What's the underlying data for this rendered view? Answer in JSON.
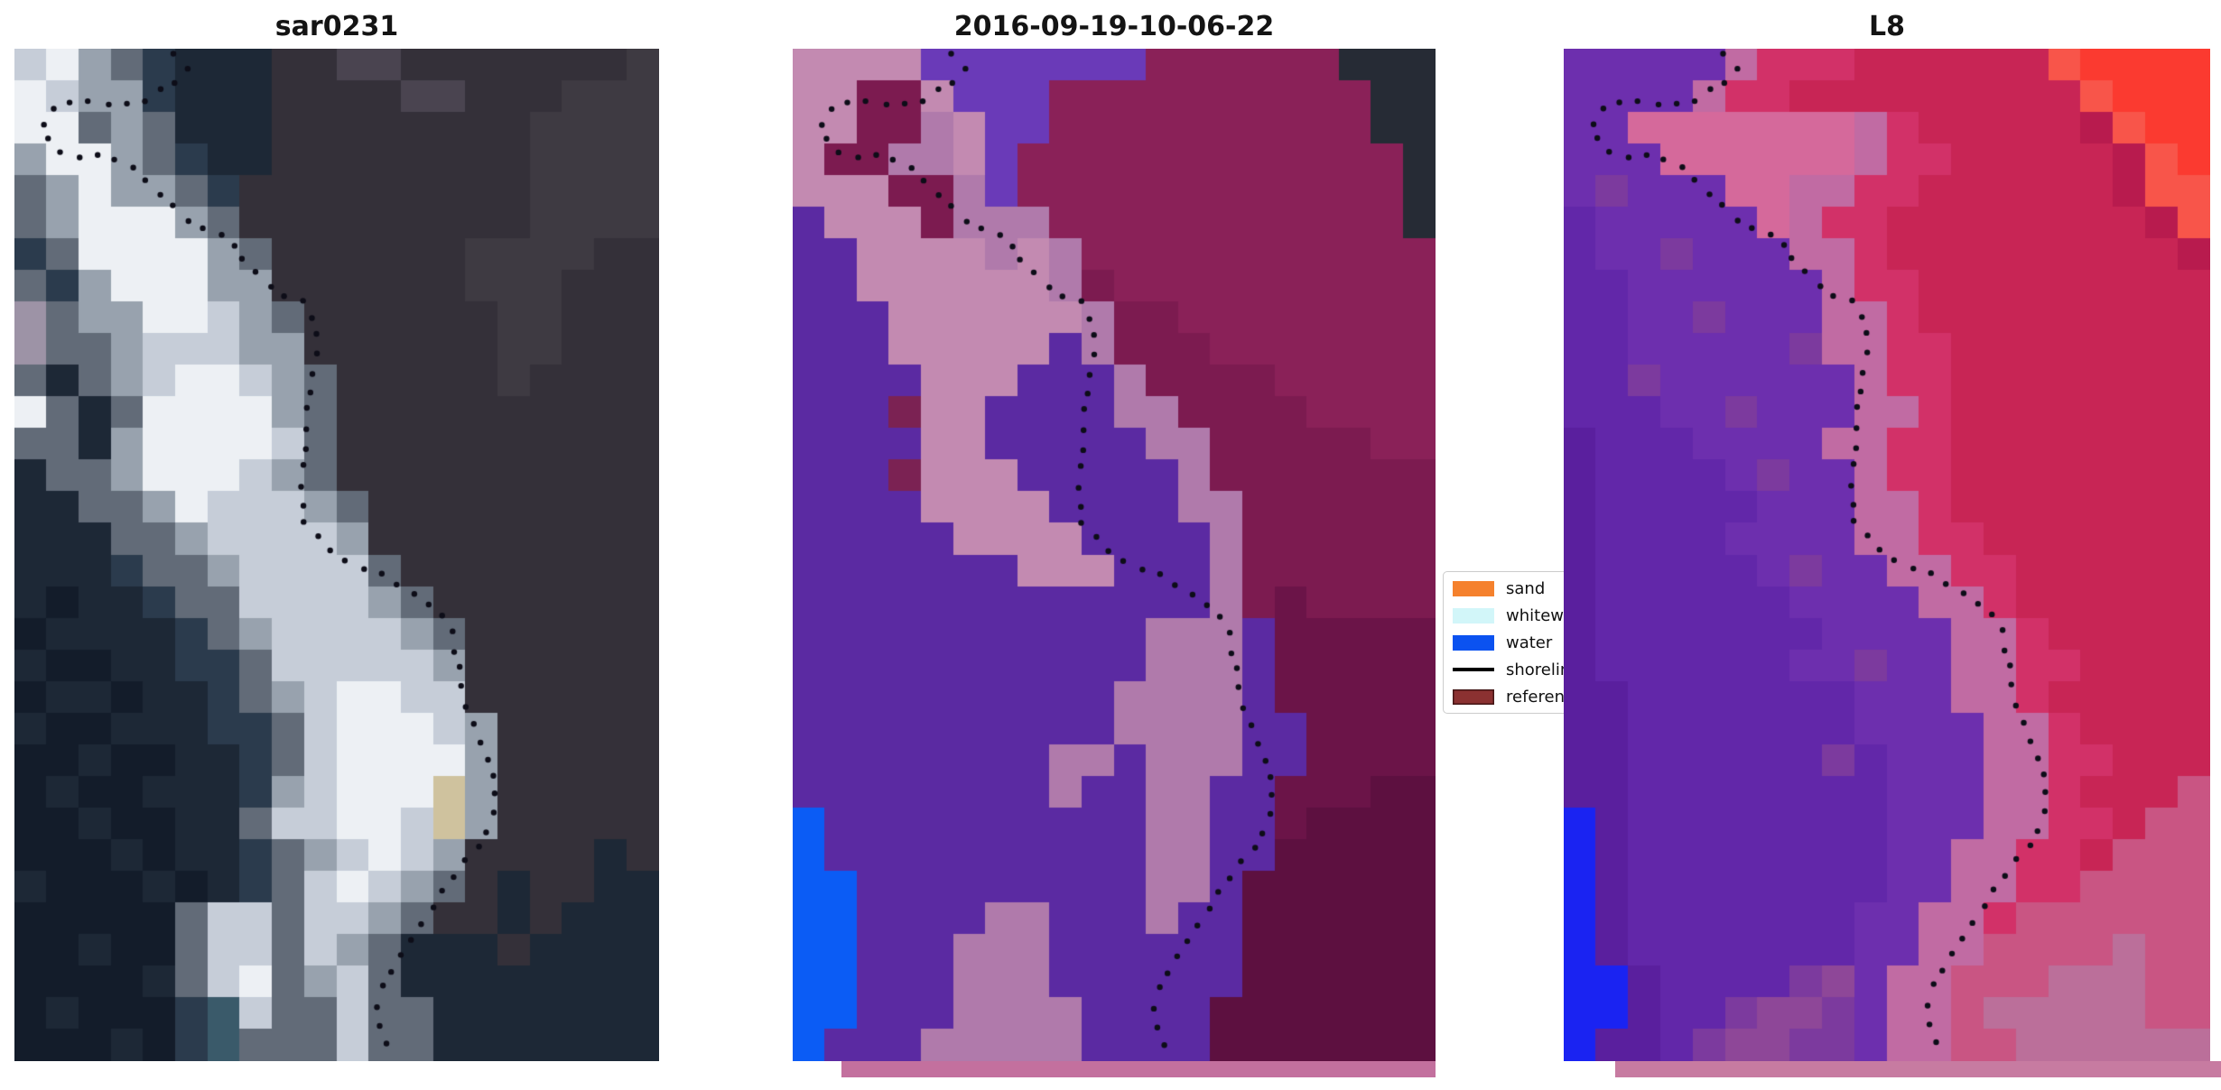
{
  "chart_data": {
    "type": "heatmap",
    "description": "Three-panel coastal satellite figure: SAR image, classified map, Landsat-8 false color; shared dotted shoreline overlay",
    "panels": [
      {
        "title": "sar0231",
        "palette": {
          "W": "#edf0f4",
          "w": "#c6cdd8",
          "G": "#98a2ae",
          "g": "#626b78",
          "t": "#2b3b4d",
          "T": "#3a5a6a",
          "n": "#1d2836",
          "N": "#131c2a",
          "l": "#343039",
          "L": "#3e3a42",
          "u": "#4a4450",
          "Y": "#9d93a6",
          "s": "#cfc29e"
        },
        "grid": [
          "wWGgtnnnlluulllllllL",
          "WwGGtnnnlllluulllLLL",
          "WWgGgnnnllllllllLLLL",
          "GWWGgtnnllllllllLLLL",
          "gGWGGgtlllllllllLLLL",
          "gGWWWGglllllllllLLLL",
          "tgWWWWGgllllllLLLLll",
          "gtGWWWGGllllllLLLlll",
          "YgGGWWwGgllllllLLlll",
          "YggGwwwGGllllllLLlll",
          "gngGwWWwGglllllLllll",
          "WgngWWWWGgllllllllll",
          "ggnGWWWWwgllllllllll",
          "nggGWWWwGgllllllllll",
          "nnggGWwwwGglllllllll",
          "nnnggGwwwwGlllllllll",
          "nnntggGwwwwgllllllll",
          "nNnntggwwwwGglllllll",
          "NnnnntgGwwwwGgllllll",
          "nNNnnttgwwwwwGllllll",
          "NnnNnntgGwWWwwllllll",
          "nNNnnnttgwWWWwGlllll",
          "NNnNNnntgwWWWWGlllll",
          "NnNNnnntGwWWWsGlllll",
          "NNnNNnngwwWWwsGlllll",
          "NNNnNnntgGwWwGllllnl",
          "nNNNnNntgwWwGglnllnn",
          "NNNNNgwwgwwGgllnlnnn",
          "NNnNNgwwgwGgnnnlnnnn",
          "NNNNngwWgGwgnnnnnnnn",
          "NnNNNtTwggwggnnnnnnn",
          "NNNnNtTgggwggnnnnnnn"
        ]
      },
      {
        "title": "2016-09-19-10-06-22",
        "palette": {
          "P": "#5b2aa2",
          "p": "#6a3ab8",
          "M": "#c38ab1",
          "m": "#b07aab",
          "R": "#8a2158",
          "r": "#7c1b50",
          "d": "#6b1448",
          "e": "#5d1040",
          "K": "#262b35",
          "B": "#0b5cf5",
          "D": "#7b2253"
        },
        "grid": [
          "MMMMpppppppRRRRRRKKK",
          "MMrrMpppRRRRRRRRRRKK",
          "MMrrmMppRRRRRRRRRRKK",
          "MrrmmMpRRRRRRRRRRRRK",
          "MMMrrmpRRRRRRRRRRRRK",
          "PMMMrmmmRRRRRRRRRRRK",
          "PPMMMMmMmRRRRRRRRRRR",
          "PPMMMMMMmrRRRRRRRRRR",
          "PPPMMMMMMmrrRRRRRRRR",
          "PPPMMMMMPmrrrRRRRRRR",
          "PPPPMMMPPPmrrrrRRRRR",
          "PPPDMMPPPPmmrrrrRRRR",
          "PPPPMMPPPPPmmrrrrrRR",
          "PPPDMMMPPPPPmrrrrrrr",
          "PPPPMMMMPPPPmmrrrrrr",
          "PPPPPMMMMPPPPmrrrrrr",
          "PPPPPPPMMMPPPmrrrrrr",
          "PPPPPPPPPPPPPmrdrrrr",
          "PPPPPPPPPPPmmmPddddd",
          "PPPPPPPPPPPmmmPddddd",
          "PPPPPPPPPPmmmmPddddd",
          "PPPPPPPPPPmmmmPPdddd",
          "PPPPPPPPmmPmmmPPdddd",
          "PPPPPPPPmPPmmPPdddee",
          "BPPPPPPPPPPmmPPdeeee",
          "BPPPPPPPPPPmmPPeeeee",
          "BBPPPPPPPPPmmPeeeeee",
          "BBPPPPmmPPPmPPeeeeee",
          "BBPPPmmmPPPPPPeeeeee",
          "BBPPPmmmPPPPPPeeeeee",
          "BBPPPmmmmPPPPeeeeeee",
          "BPPPmmmmmPPPPeeeeeee"
        ]
      },
      {
        "title": "L8",
        "palette": {
          "V": "#6d2fae",
          "v": "#6227a9",
          "U": "#5a1f9e",
          "q": "#7c3a9e",
          "y": "#8e4798",
          "F": "#d5699b",
          "f": "#c16ba3",
          "c": "#d23168",
          "C": "#c82555",
          "O": "#b81b4e",
          "X": "#fb3a30",
          "o": "#f8554a",
          "h": "#c95583",
          "H": "#bb6f9a",
          "B": "#1a23f2"
        },
        "grid": [
          "VVVVVfcccCCCCCCoXXXX",
          "VVVVfccCCCCCCCCCoXXX",
          "VVFFFFFFFfcCCCCCOoXX",
          "VVVFFFFFFfccCCCCCOoX",
          "VqVVVFFffccCCCCCCOoo",
          "vVVVVVFfccCCCCCCCCOo",
          "vVVqVVVffcCCCCCCCCCO",
          "vvVVVVVVfccCCCCCCCCC",
          "vvVVqVVVffcCCCCCCCCC",
          "vvVVVVVqffccCCCCCCCC",
          "vvqVVVVVVfccCCCCCCCC",
          "vvvVVqVVVffcCCCCCCCC",
          "UvvvVVVVffccCCCCCCCC",
          "UvvvvVqVVfccCCCCCCCC",
          "UvvvvvVVVffcCCCCCCCC",
          "UvvvvVVVVffccCCCCCCC",
          "UvvvvvVqVVffccCCCCCC",
          "UvvvvvvVVVVffcCCCCCC",
          "UvvvvvvvVVVVffcCCCCC",
          "UvvvvvvVVqVVffccCCCC",
          "UUvvvvvvvVVVffcCCCCC",
          "UUvvvvvvvVVVVffcCCCC",
          "UUvvvvvvqvVVVffccCCC",
          "UUvvvvvvvvVVVffcCCCh",
          "BUvvvvvvvvVVVffccChh",
          "BUvvvvvvvvVVffccChhh",
          "BUvvvvvvvvVVffcchhhh",
          "BUvvvvvvvVVffchhhhhh",
          "BUvvvvvvvVVffhhhhHhh",
          "BBUvvvvqyVffhhhHHHhh",
          "BBUvvqyyqVffhHHHHHhh",
          "BUUvqyyqqVffhhHHHHHH"
        ]
      }
    ],
    "shoreline": {
      "dot_color": "#0d0d18",
      "dot_radius": 3.2,
      "spacing": 21,
      "points": [
        [
          0.25,
          0.005
        ],
        [
          0.27,
          0.025
        ],
        [
          0.23,
          0.04
        ],
        [
          0.2,
          0.055
        ],
        [
          0.1,
          0.052
        ],
        [
          0.066,
          0.054
        ],
        [
          0.04,
          0.075
        ],
        [
          0.05,
          0.09
        ],
        [
          0.09,
          0.11
        ],
        [
          0.14,
          0.106
        ],
        [
          0.175,
          0.114
        ],
        [
          0.23,
          0.145
        ],
        [
          0.283,
          0.177
        ],
        [
          0.336,
          0.185
        ],
        [
          0.36,
          0.215
        ],
        [
          0.42,
          0.245
        ],
        [
          0.46,
          0.252
        ],
        [
          0.468,
          0.3
        ],
        [
          0.455,
          0.36
        ],
        [
          0.444,
          0.42
        ],
        [
          0.448,
          0.47
        ],
        [
          0.5,
          0.5
        ],
        [
          0.55,
          0.515
        ],
        [
          0.61,
          0.533
        ],
        [
          0.66,
          0.553
        ],
        [
          0.681,
          0.575
        ],
        [
          0.688,
          0.61
        ],
        [
          0.692,
          0.63
        ],
        [
          0.707,
          0.663
        ],
        [
          0.721,
          0.681
        ],
        [
          0.742,
          0.707
        ],
        [
          0.747,
          0.731
        ],
        [
          0.748,
          0.75
        ],
        [
          0.742,
          0.765
        ],
        [
          0.706,
          0.8
        ],
        [
          0.664,
          0.835
        ],
        [
          0.615,
          0.88
        ],
        [
          0.573,
          0.924
        ],
        [
          0.563,
          0.95
        ],
        [
          0.577,
          0.978
        ],
        [
          0.59,
          0.997
        ]
      ]
    },
    "legend": {
      "background": "#ffffff",
      "border": "#cccccc",
      "entries": [
        {
          "label": "sand",
          "type": "patch",
          "color": "#f5812d"
        },
        {
          "label": "whitewater",
          "type": "patch",
          "color": "#d2f6f9"
        },
        {
          "label": "water",
          "type": "patch",
          "color": "#0b52f0"
        },
        {
          "label": "shoreline",
          "type": "line",
          "color": "#000000"
        },
        {
          "label": "reference shoreline",
          "type": "patch",
          "color": "#8b3131",
          "edge": "#431515"
        }
      ]
    },
    "strips": [
      {
        "panel": 2,
        "color": "#c3709e"
      },
      {
        "panel": 3,
        "color": "#c77ba1"
      }
    ]
  }
}
